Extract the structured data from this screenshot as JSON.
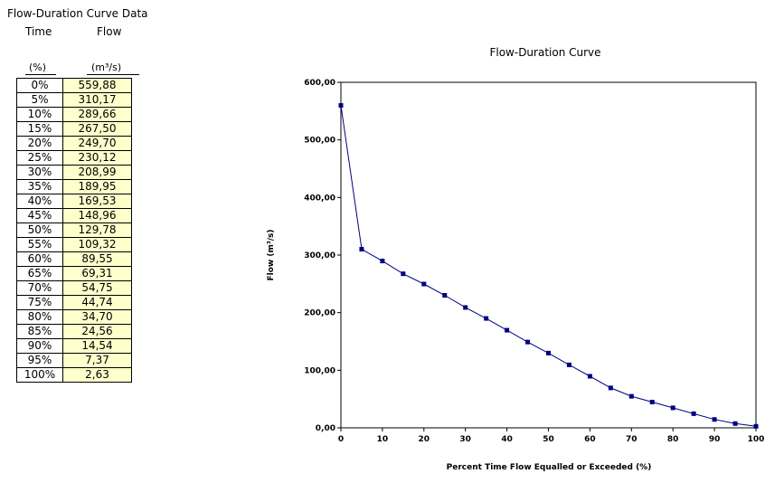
{
  "table": {
    "title": "Flow-Duration Curve Data",
    "col_time": "Time",
    "col_flow": "Flow",
    "unit_time": "(%)",
    "unit_flow": "(m³/s)",
    "rows": [
      {
        "time": "0%",
        "flow": "559,88"
      },
      {
        "time": "5%",
        "flow": "310,17"
      },
      {
        "time": "10%",
        "flow": "289,66"
      },
      {
        "time": "15%",
        "flow": "267,50"
      },
      {
        "time": "20%",
        "flow": "249,70"
      },
      {
        "time": "25%",
        "flow": "230,12"
      },
      {
        "time": "30%",
        "flow": "208,99"
      },
      {
        "time": "35%",
        "flow": "189,95"
      },
      {
        "time": "40%",
        "flow": "169,53"
      },
      {
        "time": "45%",
        "flow": "148,96"
      },
      {
        "time": "50%",
        "flow": "129,78"
      },
      {
        "time": "55%",
        "flow": "109,32"
      },
      {
        "time": "60%",
        "flow": "89,55"
      },
      {
        "time": "65%",
        "flow": "69,31"
      },
      {
        "time": "70%",
        "flow": "54,75"
      },
      {
        "time": "75%",
        "flow": "44,74"
      },
      {
        "time": "80%",
        "flow": "34,70"
      },
      {
        "time": "85%",
        "flow": "24,56"
      },
      {
        "time": "90%",
        "flow": "14,54"
      },
      {
        "time": "95%",
        "flow": "7,37"
      },
      {
        "time": "100%",
        "flow": "2,63"
      }
    ]
  },
  "chart_data": {
    "type": "line",
    "title": "Flow-Duration Curve",
    "xlabel": "Percent Time Flow Equalled or Exceeded (%)",
    "ylabel": "Flow (m³/s)",
    "x": [
      0,
      5,
      10,
      15,
      20,
      25,
      30,
      35,
      40,
      45,
      50,
      55,
      60,
      65,
      70,
      75,
      80,
      85,
      90,
      95,
      100
    ],
    "series": [
      {
        "values": [
          559.88,
          310.17,
          289.66,
          267.5,
          249.7,
          230.12,
          208.99,
          189.95,
          169.53,
          148.96,
          129.78,
          109.32,
          89.55,
          69.31,
          54.75,
          44.74,
          34.7,
          24.56,
          14.54,
          7.37,
          2.63
        ]
      }
    ],
    "xlim": [
      0,
      100
    ],
    "ylim": [
      0,
      600
    ],
    "xticks": [
      "0",
      "10",
      "20",
      "30",
      "40",
      "50",
      "60",
      "70",
      "80",
      "90",
      "100"
    ],
    "yticks": [
      "0,00",
      "100,00",
      "200,00",
      "300,00",
      "400,00",
      "500,00",
      "600,00"
    ],
    "grid": false,
    "legend": "none",
    "line_color": "#000080",
    "marker_color": "#000080"
  }
}
